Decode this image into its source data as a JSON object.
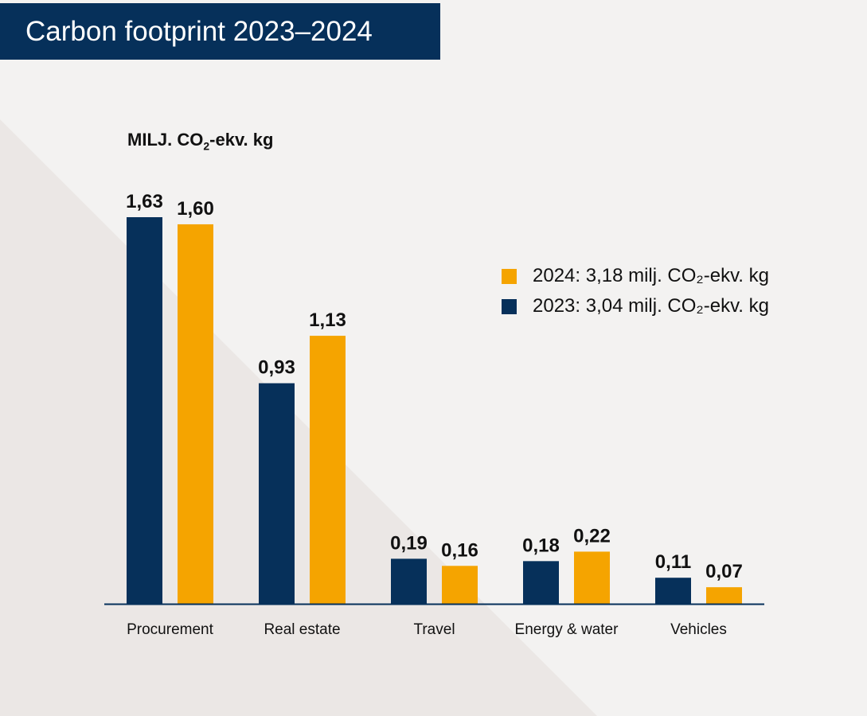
{
  "header": {
    "title": "Carbon footprint 2023–2024"
  },
  "chart_data": {
    "type": "bar",
    "ylabel_parts": [
      "MILJ. CO",
      "2",
      "-ekv. kg"
    ],
    "categories": [
      "Procurement",
      "Real estate",
      "Travel",
      "Energy & water",
      "Vehicles"
    ],
    "series": [
      {
        "name": "2023: 3,04 milj. CO₂-ekv. kg",
        "color": "#06305a",
        "values": [
          1.63,
          0.93,
          0.19,
          0.18,
          0.11
        ],
        "labels": [
          "1,63",
          "0,93",
          "0,19",
          "0,18",
          "0,11"
        ]
      },
      {
        "name": "2024: 3,18 milj. CO₂-ekv. kg",
        "color": "#f5a400",
        "values": [
          1.6,
          1.13,
          0.16,
          0.22,
          0.07
        ],
        "labels": [
          "1,60",
          "1,13",
          "0,16",
          "0,22",
          "0,07"
        ]
      }
    ],
    "legend_order": [
      1,
      0
    ],
    "legend_position": "right",
    "ylim": [
      0,
      1.63
    ],
    "grid": false
  }
}
